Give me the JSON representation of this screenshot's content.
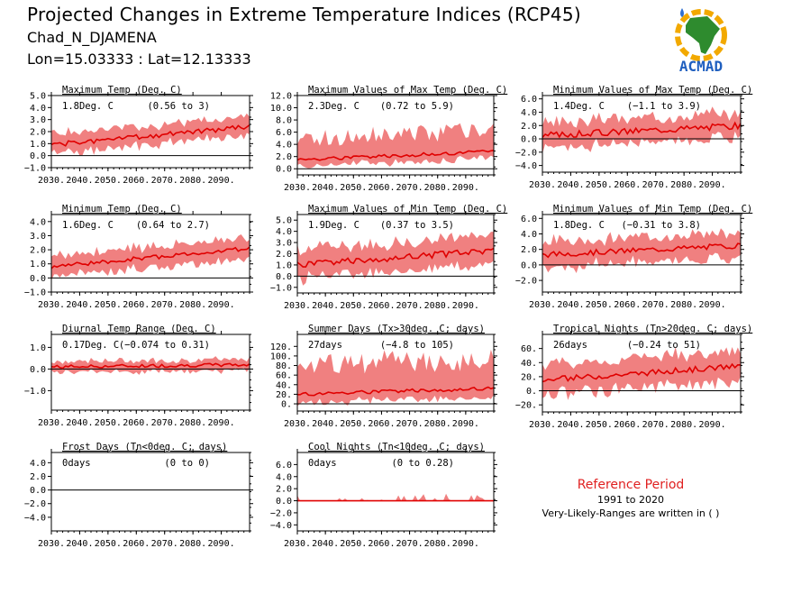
{
  "header": {
    "title": "Projected Changes in Extreme Temperature Indices (RCP45)",
    "station": "Chad_N_DJAMENA",
    "coords": "Lon=15.03333 : Lat=12.13333"
  },
  "logo": {
    "text": "ACMAD",
    "icon": "acmad-africa-logo"
  },
  "reference": {
    "title": "Reference Period",
    "years": "1991 to 2020",
    "note": "Very-Likely-Ranges are written in ( )"
  },
  "colors": {
    "band": "#f08080",
    "line": "#e00000",
    "zero": "#000000",
    "ref_title": "#e02020"
  },
  "chart_data": [
    {
      "id": "txx",
      "type": "area",
      "title": "Maximum Temp (Deg. C)",
      "mean_text": "1.8Deg. C",
      "range_text": "(0.56 to 3)",
      "x_ticks": [
        "2030.",
        "2040.",
        "2050.",
        "2060.",
        "2070.",
        "2080.",
        "2090."
      ],
      "xlim": [
        2030,
        2100
      ],
      "ylim": [
        -1.0,
        5.0
      ],
      "y_ticks": [
        -1.0,
        0.0,
        1.0,
        2.0,
        3.0,
        4.0,
        5.0
      ],
      "y_tick_labels": [
        "−1.0",
        "0.0",
        "1.0",
        "2.0",
        "3.0",
        "4.0",
        "5.0"
      ],
      "series": [
        {
          "start": 0.9,
          "end": 2.4,
          "lo": 0.75,
          "hi": 0.85,
          "noise": 0.2,
          "seed": 1
        }
      ]
    },
    {
      "id": "txmax",
      "type": "area",
      "title": "Maximum Values of Max Temp (Deg. C)",
      "mean_text": "2.3Deg. C",
      "range_text": "(0.72 to 5.9)",
      "x_ticks": [
        "2030.",
        "2040.",
        "2050.",
        "2060.",
        "2070.",
        "2080.",
        "2090."
      ],
      "xlim": [
        2030,
        2100
      ],
      "ylim": [
        -1.0,
        12.0
      ],
      "y_ticks": [
        0.0,
        2.0,
        4.0,
        6.0,
        8.0,
        10.0,
        12.0
      ],
      "y_tick_labels": [
        "0.0",
        "2.0",
        "4.0",
        "6.0",
        "8.0",
        "10.0",
        "12.0"
      ],
      "series": [
        {
          "start": 1.5,
          "end": 2.8,
          "lo": 1.1,
          "hi": 3.5,
          "noise": 0.3,
          "seed": 2
        }
      ]
    },
    {
      "id": "txmin",
      "type": "area",
      "title": "Minimum Values of Max Temp (Deg. C)",
      "mean_text": "1.4Deg. C",
      "range_text": "(−1.1 to 3.9)",
      "x_ticks": [
        "2030.",
        "2040.",
        "2050.",
        "2060.",
        "2070.",
        "2080.",
        "2090."
      ],
      "xlim": [
        2030,
        2100
      ],
      "ylim": [
        -5.0,
        6.5
      ],
      "y_ticks": [
        -4.0,
        -2.0,
        0.0,
        2.0,
        4.0,
        6.0
      ],
      "y_tick_labels": [
        "−4.0",
        "−2.0",
        "0.0",
        "2.0",
        "4.0",
        "6.0"
      ],
      "series": [
        {
          "start": 0.5,
          "end": 2.0,
          "lo": 1.8,
          "hi": 1.9,
          "noise": 0.5,
          "seed": 3
        }
      ]
    },
    {
      "id": "tn",
      "type": "area",
      "title": "Minimum Temp (Deg. C)",
      "mean_text": "1.6Deg. C",
      "range_text": "(0.64 to 2.7)",
      "x_ticks": [
        "2030.",
        "2040.",
        "2050.",
        "2060.",
        "2070.",
        "2080.",
        "2090."
      ],
      "xlim": [
        2030,
        2100
      ],
      "ylim": [
        -1.0,
        4.5
      ],
      "y_ticks": [
        -1.0,
        0.0,
        1.0,
        2.0,
        3.0,
        4.0
      ],
      "y_tick_labels": [
        "−1.0",
        "0.0",
        "1.0",
        "2.0",
        "3.0",
        "4.0"
      ],
      "series": [
        {
          "start": 0.8,
          "end": 2.1,
          "lo": 0.7,
          "hi": 0.8,
          "noise": 0.15,
          "seed": 4
        }
      ]
    },
    {
      "id": "tnmax",
      "type": "area",
      "title": "Maximum Values of Min Temp (Deg. C)",
      "mean_text": "1.9Deg. C",
      "range_text": "(0.37 to 3.5)",
      "x_ticks": [
        "2030.",
        "2040.",
        "2050.",
        "2060.",
        "2070.",
        "2080.",
        "2090."
      ],
      "xlim": [
        2030,
        2100
      ],
      "ylim": [
        -1.5,
        5.5
      ],
      "y_ticks": [
        -1.0,
        0.0,
        1.0,
        2.0,
        3.0,
        4.0,
        5.0
      ],
      "y_tick_labels": [
        "−1.0",
        "0.0",
        "1.0",
        "2.0",
        "3.0",
        "4.0",
        "5.0"
      ],
      "series": [
        {
          "start": 1.0,
          "end": 2.3,
          "lo": 1.2,
          "hi": 1.3,
          "noise": 0.3,
          "seed": 5
        }
      ]
    },
    {
      "id": "tnmin",
      "type": "area",
      "title": "Minimum Values of Min Temp (Deg. C)",
      "mean_text": "1.8Deg. C",
      "range_text": "(−0.31 to 3.8)",
      "x_ticks": [
        "2030.",
        "2040.",
        "2050.",
        "2060.",
        "2070.",
        "2080.",
        "2090."
      ],
      "xlim": [
        2030,
        2100
      ],
      "ylim": [
        -3.5,
        6.5
      ],
      "y_ticks": [
        -2.0,
        0.0,
        2.0,
        4.0,
        6.0
      ],
      "y_tick_labels": [
        "−2.0",
        "0.0",
        "2.0",
        "4.0",
        "6.0"
      ],
      "series": [
        {
          "start": 1.3,
          "end": 2.5,
          "lo": 1.6,
          "hi": 1.7,
          "noise": 0.35,
          "seed": 6
        }
      ]
    },
    {
      "id": "dtr",
      "type": "area",
      "title": "Diurnal Temp Range (Deg. C)",
      "mean_text": "0.17Deg. C",
      "range_text": "(−0.074 to 0.31)",
      "x_ticks": [
        "2030.",
        "2040.",
        "2050.",
        "2060.",
        "2070.",
        "2080.",
        "2090."
      ],
      "xlim": [
        2030,
        2100
      ],
      "ylim": [
        -1.9,
        1.6
      ],
      "y_ticks": [
        -1.0,
        0.0,
        1.0
      ],
      "y_tick_labels": [
        "−1.0",
        "0.0",
        "1.0"
      ],
      "series": [
        {
          "start": 0.1,
          "end": 0.2,
          "lo": 0.25,
          "hi": 0.25,
          "noise": 0.08,
          "seed": 7
        }
      ]
    },
    {
      "id": "su",
      "type": "area",
      "title": "Summer Days (Tx>30deg. C; days)",
      "mean_text": "27days",
      "range_text": "(−4.8 to 105)",
      "x_ticks": [
        "2030.",
        "2040.",
        "2050.",
        "2060.",
        "2070.",
        "2080.",
        "2090."
      ],
      "xlim": [
        2030,
        2100
      ],
      "ylim": [
        -15,
        145
      ],
      "y_ticks": [
        0,
        20,
        40,
        60,
        80,
        100,
        120
      ],
      "y_tick_labels": [
        "0.",
        "20.",
        "40.",
        "60.",
        "80.",
        "100.",
        "120."
      ],
      "series": [
        {
          "start": 20,
          "end": 32,
          "lo": 18,
          "hi": 60,
          "noise": 4,
          "seed": 8
        }
      ]
    },
    {
      "id": "tr",
      "type": "area",
      "title": "Tropical Nights (Tn>20deg. C; days)",
      "mean_text": "26days",
      "range_text": "(−0.24 to 51)",
      "x_ticks": [
        "2030.",
        "2040.",
        "2050.",
        "2060.",
        "2070.",
        "2080.",
        "2090."
      ],
      "xlim": [
        2030,
        2100
      ],
      "ylim": [
        -30,
        80
      ],
      "y_ticks": [
        -20,
        0,
        20,
        40,
        60
      ],
      "y_tick_labels": [
        "−20.",
        "0.",
        "20.",
        "40.",
        "60."
      ],
      "series": [
        {
          "start": 15,
          "end": 35,
          "lo": 20,
          "hi": 22,
          "noise": 4,
          "seed": 9
        }
      ]
    },
    {
      "id": "fd",
      "type": "area",
      "title": "Frost Days (Tn<0deg. C; days)",
      "mean_text": "0days",
      "range_text": "(0 to 0)",
      "x_ticks": [
        "2030.",
        "2040.",
        "2050.",
        "2060.",
        "2070.",
        "2080.",
        "2090."
      ],
      "xlim": [
        2030,
        2100
      ],
      "ylim": [
        -6.0,
        5.5
      ],
      "y_ticks": [
        -4.0,
        -2.0,
        0.0,
        2.0,
        4.0
      ],
      "y_tick_labels": [
        "−4.0",
        "−2.0",
        "0.0",
        "2.0",
        "4.0"
      ],
      "series": [
        {
          "start": 0,
          "end": 0,
          "lo": 0,
          "hi": 0,
          "noise": 0,
          "seed": 10
        }
      ]
    },
    {
      "id": "tn10",
      "type": "area",
      "title": "Cool Nights (Tn<10deg. C; days)",
      "mean_text": "0days",
      "range_text": "(0 to 0.28)",
      "x_ticks": [
        "2030.",
        "2040.",
        "2050.",
        "2060.",
        "2070.",
        "2080.",
        "2090."
      ],
      "xlim": [
        2030,
        2100
      ],
      "ylim": [
        -5.0,
        8.0
      ],
      "y_ticks": [
        -4.0,
        -2.0,
        0.0,
        2.0,
        4.0,
        6.0
      ],
      "y_tick_labels": [
        "−4.0",
        "−2.0",
        "0.0",
        "2.0",
        "4.0",
        "6.0"
      ],
      "series": [
        {
          "start": 0,
          "end": 0,
          "lo": 0,
          "hi": 0.4,
          "noise": 0,
          "seed": 11,
          "spikes": true
        }
      ]
    }
  ]
}
